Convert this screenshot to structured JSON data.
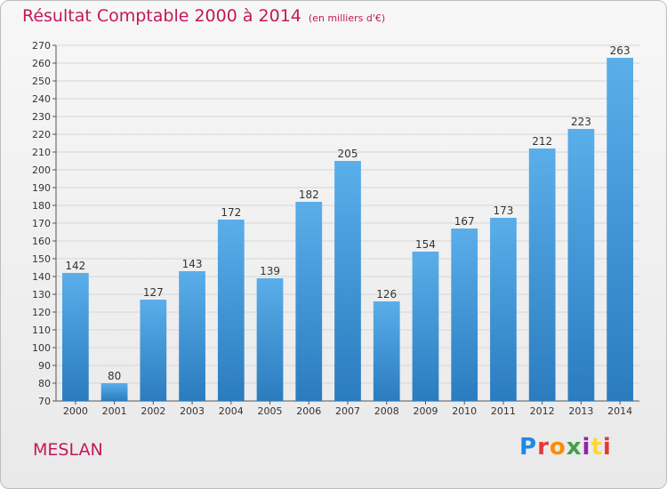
{
  "header": {
    "title": "Résultat Comptable 2000 à 2014",
    "unit": "(en milliers d'€)"
  },
  "footer": {
    "commune": "MESLAN",
    "logo_letters": [
      "P",
      "r",
      "o",
      "x",
      "i",
      "t",
      "i"
    ]
  },
  "colors": {
    "accent": "#c2185b",
    "bar_top": "#5aaee9",
    "bar_bottom": "#2a7cbf",
    "grid": "#d6d6d6",
    "logo": [
      "#1e88e5",
      "#e53935",
      "#fb8c00",
      "#43a047",
      "#8e24aa",
      "#fdd835",
      "#e53935"
    ]
  },
  "chart_data": {
    "type": "bar",
    "title": "Résultat Comptable 2000 à 2014",
    "subtitle": "(en milliers d'€)",
    "xlabel": "",
    "ylabel": "",
    "categories": [
      "2000",
      "2001",
      "2002",
      "2003",
      "2004",
      "2005",
      "2006",
      "2007",
      "2008",
      "2009",
      "2010",
      "2011",
      "2012",
      "2013",
      "2014"
    ],
    "values": [
      142,
      80,
      127,
      143,
      172,
      139,
      182,
      205,
      126,
      154,
      167,
      173,
      212,
      223,
      263
    ],
    "ylim": [
      70,
      270
    ],
    "ytick_step": 10,
    "grid": true,
    "legend": "none",
    "data_labels": true
  }
}
